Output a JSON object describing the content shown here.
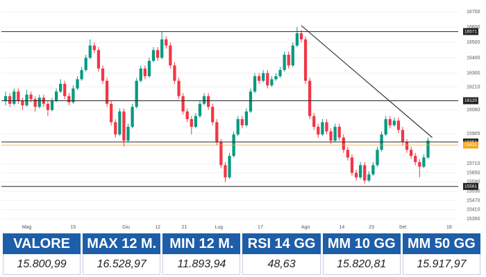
{
  "chart_data": {
    "type": "candlestick",
    "candles": [
      [
        16120,
        16180,
        16090,
        16150
      ],
      [
        16150,
        16170,
        16080,
        16100
      ],
      [
        16100,
        16200,
        16090,
        16180
      ],
      [
        16180,
        16200,
        16100,
        16120
      ],
      [
        16120,
        16140,
        16060,
        16090
      ],
      [
        16090,
        16190,
        16080,
        16160
      ],
      [
        16160,
        16180,
        16110,
        16130
      ],
      [
        16130,
        16150,
        16050,
        16080
      ],
      [
        16080,
        16160,
        16070,
        16140
      ],
      [
        16140,
        16160,
        16080,
        16100
      ],
      [
        16100,
        16120,
        16020,
        16060
      ],
      [
        16060,
        16140,
        16050,
        16120
      ],
      [
        16120,
        16200,
        16110,
        16180
      ],
      [
        16180,
        16260,
        16170,
        16230
      ],
      [
        16230,
        16250,
        16130,
        16150
      ],
      [
        16150,
        16170,
        16090,
        16110
      ],
      [
        16110,
        16220,
        16100,
        16200
      ],
      [
        16200,
        16280,
        16190,
        16260
      ],
      [
        16260,
        16340,
        16250,
        16320
      ],
      [
        16320,
        16420,
        16310,
        16400
      ],
      [
        16400,
        16520,
        16390,
        16480
      ],
      [
        16480,
        16500,
        16430,
        16450
      ],
      [
        16450,
        16470,
        16310,
        16330
      ],
      [
        16330,
        16350,
        16230,
        16250
      ],
      [
        16250,
        16270,
        16080,
        16100
      ],
      [
        16100,
        16120,
        15960,
        15980
      ],
      [
        15980,
        16000,
        15880,
        15900
      ],
      [
        15900,
        16070,
        15890,
        16050
      ],
      [
        16050,
        16070,
        15820,
        15860
      ],
      [
        15860,
        15970,
        15850,
        15950
      ],
      [
        15950,
        16100,
        15940,
        16080
      ],
      [
        16080,
        16270,
        16070,
        16250
      ],
      [
        16250,
        16350,
        16240,
        16330
      ],
      [
        16330,
        16350,
        16260,
        16280
      ],
      [
        16280,
        16400,
        16270,
        16380
      ],
      [
        16380,
        16470,
        16370,
        16450
      ],
      [
        16450,
        16470,
        16380,
        16400
      ],
      [
        16400,
        16570,
        16390,
        16520
      ],
      [
        16520,
        16540,
        16460,
        16480
      ],
      [
        16480,
        16500,
        16330,
        16350
      ],
      [
        16350,
        16370,
        16230,
        16250
      ],
      [
        16250,
        16270,
        16130,
        16150
      ],
      [
        16150,
        16170,
        16030,
        16050
      ],
      [
        16050,
        16070,
        15980,
        16000
      ],
      [
        16000,
        16020,
        15900,
        15950
      ],
      [
        15950,
        16040,
        15940,
        16020
      ],
      [
        16020,
        16120,
        16010,
        16100
      ],
      [
        16100,
        16170,
        16090,
        16150
      ],
      [
        16150,
        16170,
        16060,
        16080
      ],
      [
        16080,
        16100,
        15960,
        15980
      ],
      [
        15980,
        16000,
        15830,
        15850
      ],
      [
        15850,
        15870,
        15680,
        15700
      ],
      [
        15700,
        15720,
        15590,
        15620
      ],
      [
        15620,
        15780,
        15610,
        15760
      ],
      [
        15760,
        15920,
        15750,
        15900
      ],
      [
        15900,
        16020,
        15890,
        16000
      ],
      [
        16000,
        16020,
        15940,
        15960
      ],
      [
        15960,
        16070,
        15950,
        16050
      ],
      [
        16050,
        16200,
        16040,
        16180
      ],
      [
        16180,
        16300,
        16170,
        16280
      ],
      [
        16280,
        16300,
        16230,
        16250
      ],
      [
        16250,
        16320,
        16240,
        16300
      ],
      [
        16300,
        16320,
        16200,
        16220
      ],
      [
        16220,
        16280,
        16210,
        16260
      ],
      [
        16260,
        16300,
        16250,
        16280
      ],
      [
        16280,
        16340,
        16270,
        16320
      ],
      [
        16320,
        16440,
        16310,
        16420
      ],
      [
        16420,
        16440,
        16330,
        16350
      ],
      [
        16350,
        16500,
        16340,
        16480
      ],
      [
        16480,
        16600,
        16470,
        16560
      ],
      [
        16560,
        16580,
        16500,
        16520
      ],
      [
        16520,
        16540,
        16230,
        16250
      ],
      [
        16250,
        16270,
        16000,
        16020
      ],
      [
        16020,
        16040,
        15930,
        15950
      ],
      [
        15950,
        15970,
        15880,
        15900
      ],
      [
        15900,
        16000,
        15890,
        15980
      ],
      [
        15980,
        16000,
        15900,
        15920
      ],
      [
        15920,
        15940,
        15840,
        15860
      ],
      [
        15860,
        15970,
        15850,
        15950
      ],
      [
        15950,
        15970,
        15860,
        15880
      ],
      [
        15880,
        15900,
        15780,
        15800
      ],
      [
        15800,
        15820,
        15730,
        15750
      ],
      [
        15750,
        15770,
        15630,
        15650
      ],
      [
        15650,
        15670,
        15600,
        15620
      ],
      [
        15620,
        15720,
        15610,
        15700
      ],
      [
        15700,
        15720,
        15580,
        15600
      ],
      [
        15600,
        15660,
        15590,
        15640
      ],
      [
        15640,
        15720,
        15630,
        15700
      ],
      [
        15700,
        15820,
        15690,
        15800
      ],
      [
        15800,
        15920,
        15790,
        15900
      ],
      [
        15900,
        16020,
        15890,
        16000
      ],
      [
        16000,
        16020,
        15940,
        15960
      ],
      [
        15960,
        16010,
        15950,
        15990
      ],
      [
        15990,
        16010,
        15910,
        15930
      ],
      [
        15930,
        15950,
        15830,
        15850
      ],
      [
        15850,
        15870,
        15780,
        15800
      ],
      [
        15800,
        15820,
        15740,
        15760
      ],
      [
        15760,
        15780,
        15700,
        15720
      ],
      [
        15720,
        15740,
        15620,
        15690
      ],
      [
        15690,
        15770,
        15680,
        15750
      ],
      [
        15750,
        15880,
        15740,
        15860
      ]
    ],
    "up_color": "#089981",
    "down_color": "#f23645",
    "xlim": [
      -1,
      106
    ],
    "xticks": [
      {
        "value": 5,
        "label": "Mag"
      },
      {
        "value": 16,
        "label": "15"
      },
      {
        "value": 28.5,
        "label": "Giu"
      },
      {
        "value": 36,
        "label": "12"
      },
      {
        "value": 42.3,
        "label": "21"
      },
      {
        "value": 50.5,
        "label": "Lug"
      },
      {
        "value": 60.3,
        "label": "17"
      },
      {
        "value": 71,
        "label": "Ago"
      },
      {
        "value": 79.6,
        "label": "14"
      },
      {
        "value": 86.6,
        "label": "23"
      },
      {
        "value": 94,
        "label": "Set"
      },
      {
        "value": 105,
        "label": "18"
      }
    ],
    "ylim": [
      15350,
      16700
    ],
    "yticks": [
      16700,
      16600,
      16500,
      16400,
      16300,
      16210,
      16060,
      15905,
      15710,
      15650,
      15590,
      15530,
      15470,
      15410,
      15350
    ],
    "levels": [
      16571,
      16120,
      15851,
      15561
    ],
    "last_price": 15831,
    "trendline": {
      "x": [
        70,
        101
      ],
      "y": [
        16610,
        15880
      ]
    }
  },
  "table": {
    "headers": [
      "VALORE",
      "MAX 12 M.",
      "MIN 12 M.",
      "RSI 14 GG",
      "MM 10 GG",
      "MM 50 GG"
    ],
    "values": [
      "15.800,99",
      "16.528,97",
      "11.893,94",
      "48,63",
      "15.820,81",
      "15.917,97"
    ]
  }
}
